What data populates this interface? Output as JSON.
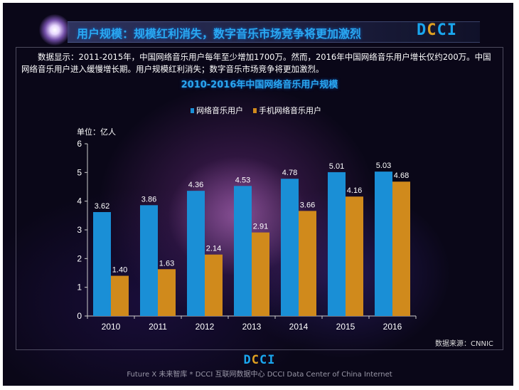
{
  "header": {
    "title": "用户规模：规模红利消失，数字音乐市场竞争将更加激烈",
    "logo": "DCCI"
  },
  "description": "数据显示：2011-2015年，中国网络音乐用户每年至少增加1700万。然而，2016年中国网络音乐用户增长仅约200万。中国网络音乐用户进入缓慢增长期。用户规模红利消失；数字音乐市场竞争将更加激烈。",
  "footer": {
    "logo": "DCCI",
    "text": "Future X 未来智库 * DCCI 互联网数据中心  DCCI Data Center of China Internet"
  },
  "chart_data": {
    "type": "bar",
    "title": "2010-2016年中国网络音乐用户规模",
    "unit_label": "单位：亿人",
    "source": "数据来源：CNNIC",
    "categories": [
      "2010",
      "2011",
      "2012",
      "2013",
      "2014",
      "2015",
      "2016"
    ],
    "series": [
      {
        "name": "网络音乐用户",
        "color": "#1a8fd6",
        "values": [
          3.62,
          3.86,
          4.36,
          4.53,
          4.78,
          5.01,
          5.03
        ]
      },
      {
        "name": "手机网络音乐用户",
        "color": "#d08a1c",
        "values": [
          1.4,
          1.63,
          2.14,
          2.91,
          3.66,
          4.16,
          4.68
        ]
      }
    ],
    "ylim": [
      0,
      6
    ],
    "yticks": [
      0,
      1,
      2,
      3,
      4,
      5,
      6
    ],
    "grid": false,
    "legend": "top"
  }
}
